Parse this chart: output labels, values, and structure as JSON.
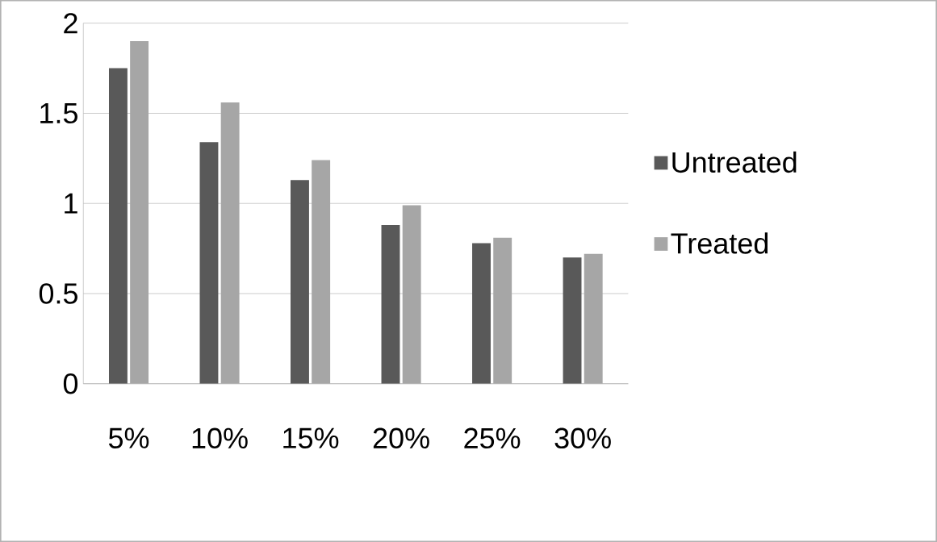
{
  "chart_data": {
    "type": "bar",
    "categories": [
      "5%",
      "10%",
      "15%",
      "20%",
      "25%",
      "30%"
    ],
    "series": [
      {
        "name": "Untreated",
        "color": "#595959",
        "values": [
          1.75,
          1.34,
          1.13,
          0.88,
          0.78,
          0.7
        ]
      },
      {
        "name": "Treated",
        "color": "#a6a6a6",
        "values": [
          1.9,
          1.56,
          1.24,
          0.99,
          0.81,
          0.72
        ]
      }
    ],
    "ylim": [
      0,
      2
    ],
    "yticks": [
      0,
      0.5,
      1,
      1.5,
      2
    ],
    "grid": "y",
    "legend": "right"
  }
}
